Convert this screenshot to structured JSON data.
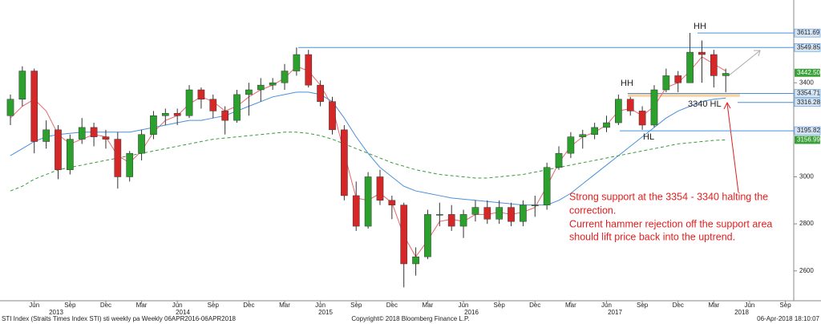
{
  "chart_data": {
    "type": "candlestick",
    "categories": [
      null,
      null,
      "Jun",
      null,
      null,
      "Sep",
      null,
      null,
      "Dec",
      null,
      null,
      "Mar",
      null,
      null,
      "Jun",
      null,
      null,
      "Sep",
      null,
      null,
      "Dec",
      null,
      null,
      "Mar",
      null,
      null,
      "Jun",
      null,
      null,
      "Sep",
      null,
      null,
      "Dec",
      null,
      null,
      "Mar",
      null,
      null,
      "Jun",
      null,
      null,
      "Sep",
      null,
      null,
      "Dec",
      null,
      null,
      "Mar",
      null,
      null,
      "Jun",
      null,
      null,
      "Sep",
      null,
      null,
      "Dec",
      null,
      null,
      "Mar",
      null,
      null,
      "Jun",
      null,
      null,
      "Sep"
    ],
    "years": [
      "2013",
      "2014",
      "2015",
      "2016",
      "2017",
      "2018"
    ],
    "open": [
      3260,
      3330,
      3450,
      3150,
      3200,
      3030,
      3160,
      3210,
      3170,
      3160,
      3000,
      3100,
      3180,
      3260,
      3270,
      3260,
      3370,
      3330,
      3280,
      3240,
      3350,
      3370,
      3390,
      3400,
      3450,
      3520,
      3390,
      3320,
      3200,
      2920,
      2790,
      3000,
      2900,
      2880,
      2630,
      2660,
      2840,
      2840,
      2790,
      2840,
      2870,
      2820,
      2870,
      2810,
      2880,
      2880,
      3040,
      3100,
      3170,
      3180,
      3210,
      3230,
      3330,
      3280,
      3220,
      3370,
      3430,
      3400,
      3530,
      3520,
      3430,
      null,
      null,
      null,
      null,
      null
    ],
    "high": [
      3350,
      3470,
      3460,
      3240,
      3220,
      3180,
      3250,
      3230,
      3200,
      3190,
      3110,
      3200,
      3280,
      3290,
      3290,
      3390,
      3380,
      3350,
      3300,
      3370,
      3400,
      3420,
      3420,
      3480,
      3550,
      3540,
      3410,
      3340,
      3220,
      2980,
      3020,
      3030,
      2920,
      2890,
      2700,
      2860,
      2890,
      2880,
      2860,
      2900,
      2900,
      2900,
      2890,
      2900,
      2920,
      3060,
      3130,
      3190,
      3200,
      3230,
      3260,
      3350,
      3340,
      3300,
      3390,
      3460,
      3450,
      3612,
      3580,
      3540,
      3460,
      null,
      null,
      null,
      null,
      null
    ],
    "low": [
      3220,
      3300,
      3100,
      3120,
      2990,
      3010,
      3140,
      3130,
      3120,
      2950,
      2980,
      3070,
      3160,
      3220,
      3220,
      3250,
      3290,
      3250,
      3180,
      3230,
      3260,
      3320,
      3370,
      3370,
      3430,
      3380,
      3300,
      3180,
      2900,
      2770,
      2780,
      2880,
      2820,
      2530,
      2580,
      2650,
      2790,
      2770,
      2740,
      2810,
      2800,
      2800,
      2790,
      2790,
      2830,
      2860,
      3030,
      3080,
      3120,
      3160,
      3190,
      3220,
      3260,
      3200,
      3210,
      3360,
      3360,
      3400,
      3400,
      3380,
      3360,
      null,
      null,
      null,
      null,
      null
    ],
    "close": [
      3330,
      3450,
      3150,
      3200,
      3030,
      3160,
      3210,
      3170,
      3160,
      3000,
      3100,
      3180,
      3260,
      3270,
      3260,
      3370,
      3330,
      3280,
      3240,
      3350,
      3370,
      3390,
      3400,
      3450,
      3520,
      3390,
      3320,
      3200,
      2920,
      2790,
      3000,
      2900,
      2880,
      2630,
      2660,
      2840,
      2840,
      2790,
      2840,
      2870,
      2820,
      2870,
      2810,
      2880,
      2880,
      3040,
      3100,
      3170,
      3180,
      3210,
      3230,
      3330,
      3280,
      3220,
      3370,
      3430,
      3400,
      3530,
      3520,
      3430,
      3440,
      null,
      null,
      null,
      null,
      null
    ],
    "up_color": "#2ca02c",
    "down_color": "#d62728",
    "series": [
      {
        "color": "#e8666b",
        "dash": false,
        "values": [
          3250,
          3300,
          3330,
          3280,
          3180,
          3140,
          3160,
          3180,
          3170,
          3090,
          3060,
          3110,
          3190,
          3240,
          3260,
          3310,
          3340,
          3320,
          3280,
          3300,
          3340,
          3370,
          3390,
          3420,
          3470,
          3450,
          3390,
          3300,
          3100,
          2910,
          2900,
          2930,
          2890,
          2750,
          2660,
          2730,
          2810,
          2820,
          2810,
          2840,
          2840,
          2850,
          2840,
          2850,
          2870,
          2960,
          3060,
          3130,
          3170,
          3190,
          3220,
          3280,
          3290,
          3260,
          3300,
          3380,
          3400,
          3450,
          3510,
          3480,
          3450,
          null,
          null,
          null,
          null,
          null
        ]
      },
      {
        "color": "#4a90d9",
        "dash": false,
        "values": [
          3090,
          3120,
          3150,
          3170,
          3180,
          3185,
          3190,
          3190,
          3190,
          3190,
          3190,
          3200,
          3210,
          3220,
          3230,
          3240,
          3240,
          3250,
          3260,
          3280,
          3300,
          3320,
          3340,
          3350,
          3360,
          3360,
          3350,
          3320,
          3250,
          3170,
          3100,
          3040,
          3000,
          2960,
          2940,
          2930,
          2920,
          2910,
          2905,
          2900,
          2895,
          2890,
          2885,
          2880,
          2880,
          2880,
          2900,
          2930,
          2970,
          3010,
          3050,
          3090,
          3130,
          3170,
          3210,
          3250,
          3280,
          3300,
          3320,
          3330,
          3335,
          null,
          null,
          null,
          null,
          null
        ]
      },
      {
        "color": "#3a9a3a",
        "dash": true,
        "values": [
          2940,
          2960,
          2990,
          3010,
          3030,
          3040,
          3050,
          3060,
          3070,
          3080,
          3090,
          3100,
          3110,
          3120,
          3130,
          3140,
          3150,
          3160,
          3165,
          3170,
          3175,
          3180,
          3185,
          3190,
          3190,
          3185,
          3175,
          3160,
          3140,
          3120,
          3100,
          3080,
          3060,
          3045,
          3030,
          3020,
          3010,
          3005,
          3000,
          2995,
          2995,
          3000,
          3005,
          3010,
          3020,
          3030,
          3040,
          3050,
          3060,
          3070,
          3080,
          3090,
          3100,
          3110,
          3120,
          3130,
          3140,
          3145,
          3150,
          3155,
          3157,
          null,
          null,
          null,
          null,
          null
        ]
      }
    ],
    "ylim": [
      2473,
      3752
    ],
    "yticks": [
      2600,
      2800,
      3000,
      3400
    ],
    "levels": [
      3611.69,
      3549.85,
      3354.71,
      3316.28,
      3195.82
    ],
    "price_tags": [
      {
        "value": 3442.5,
        "label": "3442.50"
      },
      3156.99
    ],
    "support_band": [
      3340,
      3354
    ],
    "annotations": [
      "HH",
      "HH",
      "3340 HL",
      "HL"
    ],
    "note_lines": [
      "Strong support at the 3354 - 3340 halting the",
      "correction.",
      "Current hammer rejection off the support area",
      "should lift price back into the uptrend."
    ],
    "footer": [
      "STI Index (Straits Times Index STI) sti weekly pa  Weekly 06APR2016-06APR2018",
      "Copyright© 2018 Bloomberg Finance L.P.",
      "06-Apr-2018 18:10:07"
    ]
  }
}
